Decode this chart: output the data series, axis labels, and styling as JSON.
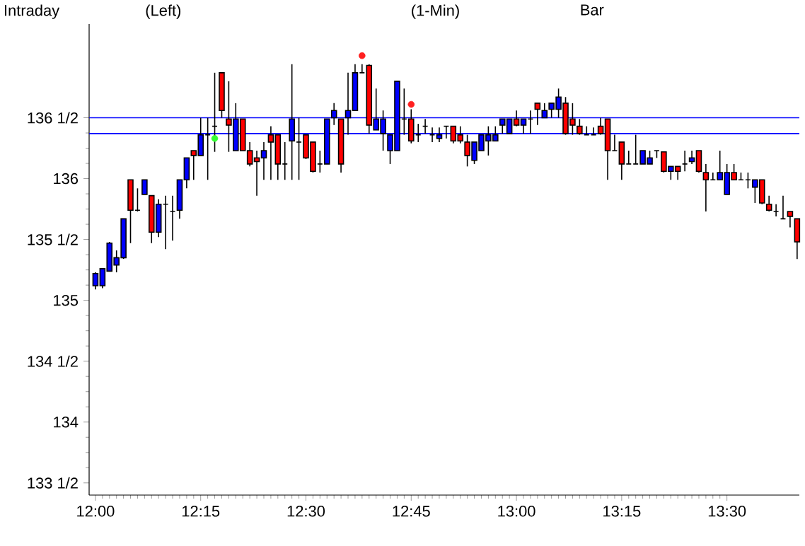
{
  "chart_data": {
    "type": "candlestick",
    "annotations": [
      "Intraday",
      "(Left)",
      "(1-Min)",
      "Bar"
    ],
    "x": [
      12,
      12.0167,
      12.0333,
      12.05,
      12.0667,
      12.0833,
      12.1,
      12.1167,
      12.1333,
      12.15,
      12.1667,
      12.1833,
      12.2,
      12.2167,
      12.2333,
      12.25,
      12.2667,
      12.2833,
      12.3,
      12.3167,
      12.3333,
      12.35,
      12.3667,
      12.3833,
      12.4,
      12.4167,
      12.4333,
      12.45,
      12.4667,
      12.4833,
      12.5,
      12.5167,
      12.5333,
      12.55,
      12.5667,
      12.5833,
      12.6,
      12.6167,
      12.6333,
      12.65,
      12.6667,
      12.6833,
      12.7,
      12.7167,
      12.7333,
      12.75,
      12.7667,
      12.7833,
      12.8,
      12.8167,
      12.8333,
      12.85,
      12.8667,
      12.8833,
      12.9,
      12.9167,
      12.9333,
      12.95,
      12.9667,
      12.9833,
      13,
      13.0167,
      13.0333,
      13.05,
      13.0667,
      13.0833,
      13.1,
      13.1167,
      13.1333,
      13.15,
      13.1667,
      13.1833,
      13.2,
      13.2167,
      13.2333,
      13.25,
      13.2667,
      13.2833,
      13.3,
      13.3167,
      13.3333,
      13.35,
      13.3667,
      13.3833,
      13.4,
      13.4167,
      13.4333,
      13.45,
      13.4667,
      13.4833,
      13.5,
      13.5167,
      13.5333,
      13.55,
      13.5667,
      13.5833,
      13.6,
      13.6167,
      13.6333,
      13.65,
      13.6667
    ],
    "ohlc": [
      [
        135.12,
        135.23,
        135.09,
        135.22
      ],
      [
        135.12,
        135.26,
        135.1,
        135.26
      ],
      [
        135.24,
        135.48,
        135.24,
        135.47
      ],
      [
        135.29,
        135.41,
        135.23,
        135.35
      ],
      [
        135.35,
        135.67,
        135.34,
        135.67
      ],
      [
        135.99,
        135.99,
        135.47,
        135.74
      ],
      [
        135.74,
        135.92,
        135.73,
        135.74
      ],
      [
        135.87,
        135.99,
        135.87,
        135.99
      ],
      [
        135.86,
        135.86,
        135.47,
        135.56
      ],
      [
        135.56,
        135.83,
        135.52,
        135.79
      ],
      [
        135.79,
        135.86,
        135.42,
        135.79
      ],
      [
        135.73,
        135.86,
        135.49,
        135.73
      ],
      [
        135.74,
        135.99,
        135.67,
        135.99
      ],
      [
        135.99,
        136.17,
        135.92,
        136.17
      ],
      [
        136.23,
        136.23,
        135.99,
        136.19
      ],
      [
        136.19,
        136.5,
        136.19,
        136.36
      ],
      [
        136.36,
        136.5,
        135.99,
        136.36
      ],
      [
        136.43,
        136.87,
        136.22,
        136.43
      ],
      [
        136.87,
        136.87,
        136.5,
        136.56
      ],
      [
        136.49,
        136.8,
        136.22,
        136.44
      ],
      [
        136.23,
        136.62,
        136.23,
        136.49
      ],
      [
        136.49,
        136.49,
        136.23,
        136.23
      ],
      [
        136.23,
        136.3,
        136.1,
        136.12
      ],
      [
        136.17,
        136.23,
        135.86,
        136.14
      ],
      [
        136.17,
        136.3,
        135.99,
        136.23
      ],
      [
        136.36,
        136.43,
        135.99,
        136.3
      ],
      [
        136.36,
        136.36,
        135.99,
        136.12
      ],
      [
        136.12,
        136.3,
        135.99,
        136.12
      ],
      [
        136.31,
        136.94,
        135.99,
        136.49
      ],
      [
        136.3,
        136.5,
        135.99,
        136.3
      ],
      [
        136.36,
        136.36,
        136.16,
        136.17
      ],
      [
        136.3,
        136.3,
        136.05,
        136.06
      ],
      [
        136.12,
        136.23,
        136.05,
        136.12
      ],
      [
        136.12,
        136.49,
        136.12,
        136.49
      ],
      [
        136.5,
        136.62,
        136.44,
        136.56
      ],
      [
        136.49,
        136.49,
        136.05,
        136.12
      ],
      [
        136.5,
        136.87,
        136.36,
        136.56
      ],
      [
        136.56,
        136.94,
        136.56,
        136.87
      ],
      [
        136.87,
        136.94,
        136.87,
        136.87
      ],
      [
        136.93,
        136.94,
        136.37,
        136.44
      ],
      [
        136.4,
        136.74,
        136.4,
        136.49
      ],
      [
        136.37,
        136.56,
        136.23,
        136.49
      ],
      [
        136.23,
        136.36,
        136.12,
        136.36
      ],
      [
        136.23,
        136.8,
        136.23,
        136.8
      ],
      [
        136.49,
        136.74,
        136.36,
        136.49
      ],
      [
        136.49,
        136.57,
        136.29,
        136.31
      ],
      [
        136.36,
        136.45,
        136.3,
        136.36
      ],
      [
        136.43,
        136.49,
        136.37,
        136.43
      ],
      [
        136.36,
        136.42,
        136.3,
        136.36
      ],
      [
        136.33,
        136.42,
        136.3,
        136.36
      ],
      [
        136.43,
        136.43,
        136.33,
        136.43
      ],
      [
        136.43,
        136.43,
        136.29,
        136.31
      ],
      [
        136.36,
        136.43,
        136.29,
        136.31
      ],
      [
        136.3,
        136.36,
        136.1,
        136.19
      ],
      [
        136.15,
        136.3,
        136.12,
        136.3
      ],
      [
        136.23,
        136.36,
        136.23,
        136.36
      ],
      [
        136.31,
        136.43,
        136.19,
        136.36
      ],
      [
        136.31,
        136.43,
        136.31,
        136.36
      ],
      [
        136.44,
        136.49,
        136.37,
        136.49
      ],
      [
        136.37,
        136.49,
        136.37,
        136.49
      ],
      [
        136.49,
        136.56,
        136.43,
        136.44
      ],
      [
        136.44,
        136.49,
        136.37,
        136.49
      ],
      [
        136.49,
        136.56,
        136.37,
        136.49
      ],
      [
        136.62,
        136.62,
        136.44,
        136.57
      ],
      [
        136.5,
        136.62,
        136.5,
        136.56
      ],
      [
        136.57,
        136.62,
        136.5,
        136.62
      ],
      [
        136.57,
        136.74,
        136.5,
        136.67
      ],
      [
        136.62,
        136.67,
        136.36,
        136.37
      ],
      [
        136.49,
        136.62,
        136.36,
        136.44
      ],
      [
        136.43,
        136.49,
        136.36,
        136.37
      ],
      [
        136.36,
        136.43,
        136.36,
        136.36
      ],
      [
        136.36,
        136.42,
        136.36,
        136.36
      ],
      [
        136.43,
        136.5,
        136.36,
        136.37
      ],
      [
        136.49,
        136.49,
        135.99,
        136.23
      ],
      [
        136.23,
        136.36,
        136.23,
        136.23
      ],
      [
        136.3,
        136.3,
        135.99,
        136.12
      ],
      [
        136.12,
        136.23,
        136.12,
        136.12
      ],
      [
        136.12,
        136.36,
        136.12,
        136.12
      ],
      [
        136.12,
        136.23,
        136.12,
        136.23
      ],
      [
        136.12,
        136.23,
        136.12,
        136.17
      ],
      [
        136.23,
        136.23,
        136.17,
        136.23
      ],
      [
        136.22,
        136.22,
        136.05,
        136.06
      ],
      [
        136.06,
        136.1,
        135.99,
        136.1
      ],
      [
        136.1,
        136.1,
        135.99,
        136.06
      ],
      [
        136.12,
        136.23,
        136.06,
        136.12
      ],
      [
        136.14,
        136.23,
        136.12,
        136.17
      ],
      [
        136.23,
        136.23,
        136.05,
        136.06
      ],
      [
        136.05,
        136.12,
        135.73,
        135.99
      ],
      [
        135.99,
        136.05,
        135.99,
        135.99
      ],
      [
        135.99,
        136.23,
        135.99,
        136.05
      ],
      [
        135.87,
        136.12,
        135.87,
        136.05
      ],
      [
        136.05,
        136.12,
        135.99,
        135.99
      ],
      [
        135.99,
        136.05,
        135.99,
        135.99
      ],
      [
        135.99,
        136.05,
        135.92,
        135.99
      ],
      [
        135.93,
        135.99,
        135.8,
        135.99
      ],
      [
        135.99,
        135.99,
        135.79,
        135.8
      ],
      [
        135.79,
        135.86,
        135.73,
        135.74
      ],
      [
        135.73,
        135.79,
        135.69,
        135.73
      ],
      [
        135.67,
        135.86,
        135.67,
        135.67
      ],
      [
        135.73,
        135.73,
        135.6,
        135.69
      ],
      [
        135.67,
        135.67,
        135.34,
        135.48
      ]
    ],
    "colors": [
      "#0000ff",
      "#0000ff",
      "#0000ff",
      "#0000ff",
      "#0000ff",
      "#ff0000",
      "#000000",
      "#0000ff",
      "#ff0000",
      "#0000ff",
      "#000000",
      "#000000",
      "#0000ff",
      "#0000ff",
      "#ff0000",
      "#0000ff",
      "#000000",
      "#000000",
      "#ff0000",
      "#ff0000",
      "#0000ff",
      "#ff0000",
      "#ff0000",
      "#ff0000",
      "#0000ff",
      "#ff0000",
      "#ff0000",
      "#000000",
      "#0000ff",
      "#000000",
      "#ff0000",
      "#ff0000",
      "#000000",
      "#0000ff",
      "#0000ff",
      "#ff0000",
      "#0000ff",
      "#0000ff",
      "#000000",
      "#ff0000",
      "#0000ff",
      "#0000ff",
      "#0000ff",
      "#0000ff",
      "#000000",
      "#ff0000",
      "#000000",
      "#000000",
      "#000000",
      "#0000ff",
      "#000000",
      "#ff0000",
      "#ff0000",
      "#ff0000",
      "#0000ff",
      "#0000ff",
      "#0000ff",
      "#0000ff",
      "#0000ff",
      "#0000ff",
      "#ff0000",
      "#0000ff",
      "#000000",
      "#ff0000",
      "#0000ff",
      "#0000ff",
      "#0000ff",
      "#ff0000",
      "#ff0000",
      "#ff0000",
      "#000000",
      "#000000",
      "#ff0000",
      "#ff0000",
      "#000000",
      "#ff0000",
      "#000000",
      "#000000",
      "#0000ff",
      "#0000ff",
      "#000000",
      "#ff0000",
      "#0000ff",
      "#ff0000",
      "#000000",
      "#0000ff",
      "#ff0000",
      "#ff0000",
      "#000000",
      "#0000ff",
      "#0000ff",
      "#ff0000",
      "#000000",
      "#000000",
      "#0000ff",
      "#ff0000",
      "#ff0000",
      "#000000",
      "#000000",
      "#ff0000",
      "#ff0000"
    ],
    "series": [
      {
        "type": "scatter",
        "x": [
          12.2833,
          12.6333,
          12.75
        ],
        "values": [
          136.33,
          137.01,
          136.61
        ],
        "colors": [
          "#33ff33",
          "#ff2020",
          "#ff2020"
        ]
      }
    ],
    "marker": "circle",
    "ref_lines": [
      {
        "axis": "y",
        "value": 136.5,
        "color": "#0000ff"
      },
      {
        "axis": "y",
        "value": 136.37,
        "color": "#0000ff"
      }
    ],
    "xlim": [
      11.985,
      13.672
    ],
    "xticks": [
      {
        "value": 12,
        "label": "12:00"
      },
      {
        "value": 12.25,
        "label": "12:15"
      },
      {
        "value": 12.5,
        "label": "12:30"
      },
      {
        "value": 12.75,
        "label": "12:45"
      },
      {
        "value": 13,
        "label": "13:00"
      },
      {
        "value": 13.25,
        "label": "13:15"
      },
      {
        "value": 13.5,
        "label": "13:30"
      }
    ],
    "ylim": [
      133.4,
      137.27
    ],
    "yticks": [
      {
        "value": 133.5,
        "label": "133 1/2"
      },
      134,
      {
        "value": 134.5,
        "label": "134 1/2"
      },
      135,
      {
        "value": 135.5,
        "label": "135 1/2"
      },
      136,
      {
        "value": 136.5,
        "label": "136 1/2"
      }
    ]
  }
}
